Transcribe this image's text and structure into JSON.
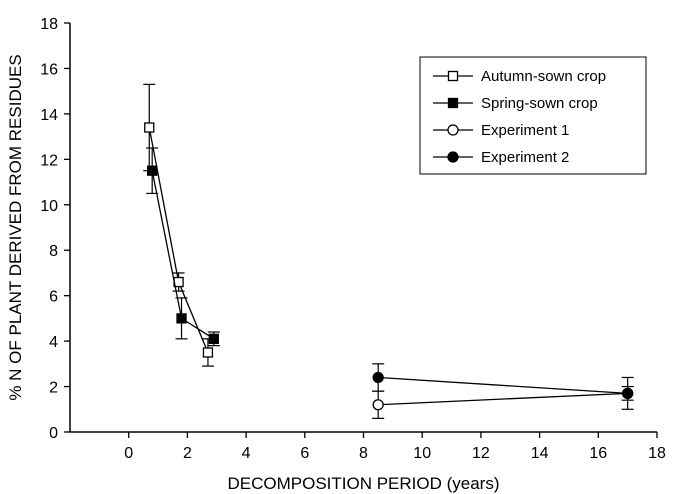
{
  "chart_data": {
    "type": "scatter",
    "xlabel": "DECOMPOSITION PERIOD (years)",
    "ylabel": "% N OF PLANT DERIVED FROM RESIDUES",
    "xlim": [
      -2,
      18
    ],
    "ylim": [
      0,
      18
    ],
    "xticks": [
      0,
      2,
      4,
      6,
      8,
      10,
      12,
      14,
      16,
      18
    ],
    "yticks": [
      0,
      2,
      4,
      6,
      8,
      10,
      12,
      14,
      16,
      18
    ],
    "grid": false,
    "legend_position": "top-right",
    "series": [
      {
        "name": "Autumn-sown crop",
        "marker": "open-square",
        "connected": true,
        "points": [
          {
            "x": 0.7,
            "y": 13.4,
            "err": 1.9
          },
          {
            "x": 1.7,
            "y": 6.6,
            "err": 0.4
          },
          {
            "x": 2.7,
            "y": 3.5,
            "err": 0.6
          }
        ]
      },
      {
        "name": "Spring-sown crop",
        "marker": "filled-square",
        "connected": true,
        "points": [
          {
            "x": 0.8,
            "y": 11.5,
            "err": 1.0
          },
          {
            "x": 1.8,
            "y": 5.0,
            "err": 0.9
          },
          {
            "x": 2.9,
            "y": 4.1,
            "err": 0.3
          }
        ]
      },
      {
        "name": "Experiment 1",
        "marker": "open-circle",
        "connected": true,
        "points": [
          {
            "x": 8.5,
            "y": 1.2,
            "err": 0.6
          },
          {
            "x": 17.0,
            "y": 1.7,
            "err": 0.3
          }
        ]
      },
      {
        "name": "Experiment 2",
        "marker": "filled-circle",
        "connected": true,
        "points": [
          {
            "x": 8.5,
            "y": 2.4,
            "err": 0.6
          },
          {
            "x": 17.0,
            "y": 1.7,
            "err": 0.7
          }
        ]
      }
    ]
  }
}
